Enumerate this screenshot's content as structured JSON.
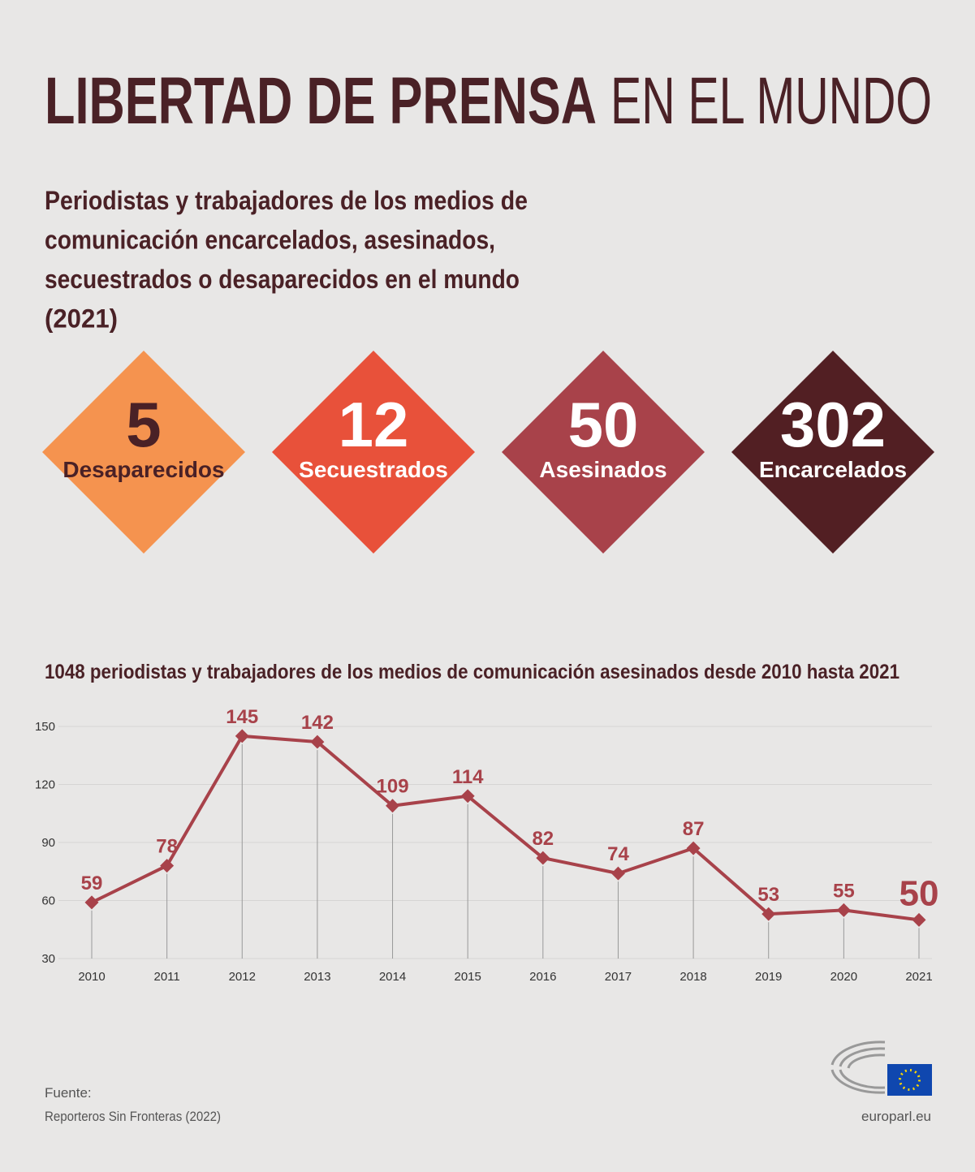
{
  "title": {
    "bold": "LIBERTAD DE PRENSA",
    "light": "EN EL MUNDO"
  },
  "subtitle": [
    "Periodistas y trabajadores de los medios de",
    "comunicación encarcelados, asesinados,",
    "secuestrados o desaparecidos en el mundo",
    "(2021)"
  ],
  "stats": [
    {
      "value": 5,
      "label": "Desaparecidos",
      "color": "#f5934f",
      "text_color": "#4a2126"
    },
    {
      "value": 12,
      "label": "Secuestrados",
      "color": "#e8513a",
      "text_color": "#ffffff"
    },
    {
      "value": 50,
      "label": "Asesinados",
      "color": "#a8424a",
      "text_color": "#ffffff"
    },
    {
      "value": 302,
      "label": "Encarcelados",
      "color": "#521f23",
      "text_color": "#ffffff"
    }
  ],
  "chart_data": {
    "type": "line",
    "title": "1048 periodistas y trabajadores de los medios de comunicación asesinados desde 2010 hasta 2021",
    "categories": [
      "2010",
      "2011",
      "2012",
      "2013",
      "2014",
      "2015",
      "2016",
      "2017",
      "2018",
      "2019",
      "2020",
      "2021"
    ],
    "values": [
      59,
      78,
      145,
      142,
      109,
      114,
      82,
      74,
      87,
      53,
      55,
      50
    ],
    "color": "#a8424a",
    "ylim": [
      30,
      150
    ],
    "yticks": [
      30,
      60,
      90,
      120,
      150
    ],
    "grid": true
  },
  "source": {
    "label": "Fuente:",
    "text": "Reporteros Sin Fronteras (2022)"
  },
  "site": "europarl.eu"
}
